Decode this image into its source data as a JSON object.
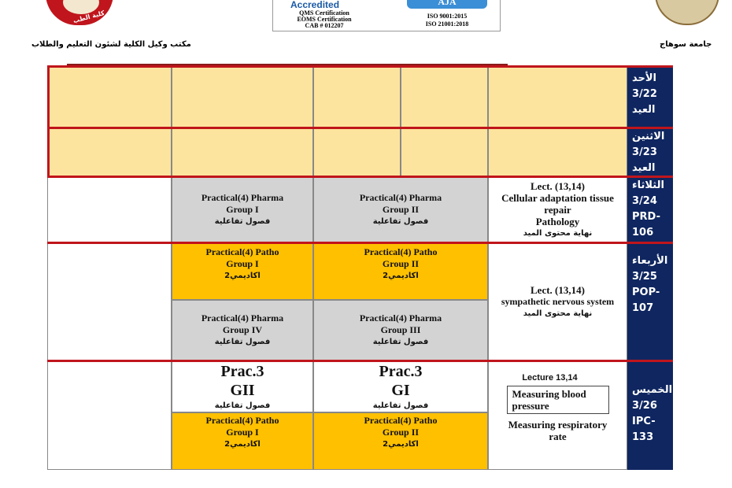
{
  "header": {
    "office": "مكتب وكيل الكلية لشئون التعليم والطلاب",
    "university": "جامعة سوهاج",
    "cert": {
      "accredited": "Accredited",
      "lines": [
        "QMS Certification",
        "EOMS Certification",
        "CAB # 012207"
      ],
      "brand": "AJA",
      "iso": [
        "ISO 9001:2015",
        "ISO 21001:2018"
      ]
    },
    "left_logo_text": "كلية الطب"
  },
  "days": [
    {
      "lines": [
        "الأحد",
        "3/22",
        "العيد"
      ]
    },
    {
      "lines": [
        "الاثنين",
        "3/23",
        "العيد"
      ]
    },
    {
      "lines": [
        "الثلاثاء",
        "3/24",
        "PRD-",
        "106"
      ]
    },
    {
      "lines": [
        "الأربعاء",
        "3/25",
        "POP-",
        "107"
      ]
    },
    {
      "lines": [
        "الخميس",
        "3/26",
        "IPC-",
        "133"
      ]
    }
  ],
  "tue": {
    "pharma1": [
      "Practical(4) Pharma",
      "Group I",
      "فصول تفاعلية"
    ],
    "pharma2": [
      "Practical(4) Pharma",
      "Group II",
      "فصول تفاعلية"
    ],
    "lect": [
      "Lect. (13,14)",
      "Cellular adaptation tissue repair",
      "Pathology",
      "نهاية محتوى الميد"
    ]
  },
  "wed": {
    "patho1": [
      "Practical(4) Patho",
      "Group I",
      "اكاديمي2"
    ],
    "patho2": [
      "Practical(4) Patho",
      "Group II",
      "اكاديمي2"
    ],
    "pharma4": [
      "Practical(4) Pharma",
      "Group IV",
      "فصول تفاعلية"
    ],
    "pharma3": [
      "Practical(4) Pharma",
      "Group III",
      "فصول تفاعلية"
    ],
    "lect": [
      "Lect. (13,14)",
      "sympathetic nervous system",
      "نهاية محتوى الميد"
    ]
  },
  "thu": {
    "prac_gii": [
      "Prac.3",
      "GII",
      "فصول تفاعلية"
    ],
    "prac_gi": [
      "Prac.3",
      "GI",
      "فصول تفاعلية"
    ],
    "patho1": [
      "Practical(4) Patho",
      "Group I",
      "اكاديمي2"
    ],
    "patho2": [
      "Practical(4) Patho",
      "Group II",
      "اكاديمي2"
    ],
    "lecture": "Lecture 13,14",
    "boxed": "Measuring blood pressure",
    "resp": "Measuring respiratory rate"
  },
  "colors": {
    "holiday": "#fde49e",
    "gray": "#d3d3d3",
    "gold": "#ffc000",
    "navy": "#0f2660",
    "red": "#c0151c"
  }
}
